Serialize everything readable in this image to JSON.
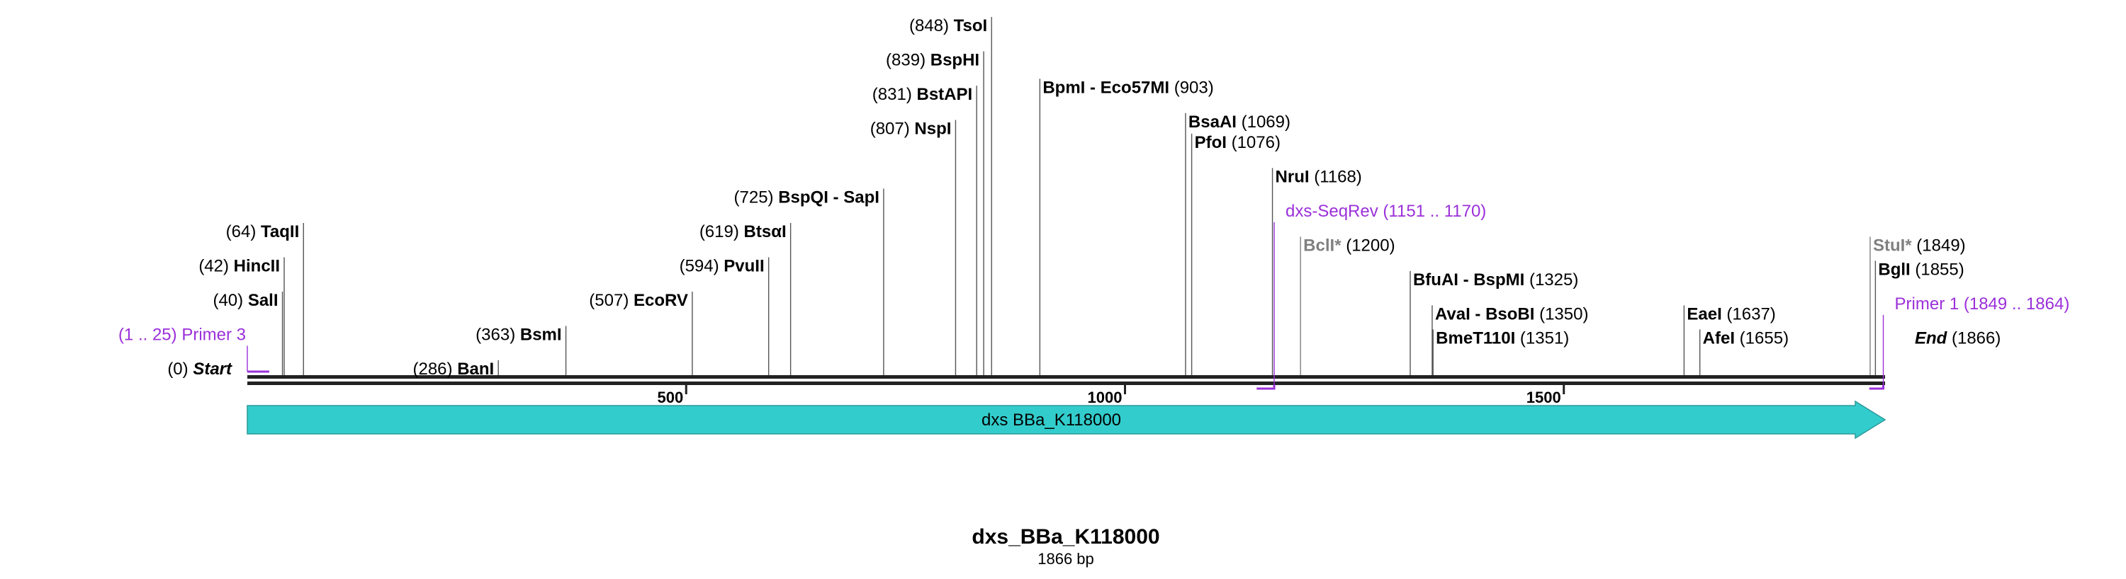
{
  "title": "dxs_BBa_K118000",
  "subtitle": "1866 bp",
  "sequence_length": 1866,
  "colors": {
    "backbone": "#222222",
    "feature_fill": "#33cccc",
    "feature_stroke": "#2a9a9a",
    "primer": "#9b30d9",
    "dim_site": "#808080",
    "line": "#555555"
  },
  "axis_ticks": [
    {
      "value": 500,
      "label": "500"
    },
    {
      "value": 1000,
      "label": "1000"
    },
    {
      "value": 1500,
      "label": "1500"
    }
  ],
  "feature": {
    "name": "dxs BBa_K118000",
    "start": 1,
    "end": 1866,
    "direction": "forward"
  },
  "sites": [
    {
      "name": "Start",
      "pos": 0,
      "pos_label": "(0)",
      "side": "left",
      "kind": "terminus",
      "tier": 0
    },
    {
      "name": "SalI",
      "pos": 40,
      "pos_label": "(40)",
      "side": "left",
      "kind": "enzyme",
      "tier": 2
    },
    {
      "name": "HincII",
      "pos": 42,
      "pos_label": "(42)",
      "side": "left",
      "kind": "enzyme",
      "tier": 3
    },
    {
      "name": "TaqII",
      "pos": 64,
      "pos_label": "(64)",
      "side": "left",
      "kind": "enzyme",
      "tier": 4
    },
    {
      "name": "BanI",
      "pos": 286,
      "pos_label": "(286)",
      "side": "left",
      "kind": "enzyme",
      "tier": 0
    },
    {
      "name": "BsmI",
      "pos": 363,
      "pos_label": "(363)",
      "side": "left",
      "kind": "enzyme",
      "tier": 1
    },
    {
      "name": "EcoRV",
      "pos": 507,
      "pos_label": "(507)",
      "side": "left",
      "kind": "enzyme",
      "tier": 2
    },
    {
      "name": "PvuII",
      "pos": 594,
      "pos_label": "(594)",
      "side": "left",
      "kind": "enzyme",
      "tier": 3
    },
    {
      "name": "BtsαI",
      "pos": 619,
      "pos_label": "(619)",
      "side": "left",
      "kind": "enzyme",
      "tier": 4
    },
    {
      "name": "BspQI - SapI",
      "pos": 725,
      "pos_label": "(725)",
      "side": "left",
      "kind": "enzyme",
      "tier": 5
    },
    {
      "name": "NspI",
      "pos": 807,
      "pos_label": "(807)",
      "side": "left",
      "kind": "enzyme",
      "tier": 7
    },
    {
      "name": "BstAPI",
      "pos": 831,
      "pos_label": "(831)",
      "side": "left",
      "kind": "enzyme",
      "tier": 8
    },
    {
      "name": "BspHI",
      "pos": 839,
      "pos_label": "(839)",
      "side": "left",
      "kind": "enzyme",
      "tier": 9
    },
    {
      "name": "TsoI",
      "pos": 848,
      "pos_label": "(848)",
      "side": "left",
      "kind": "enzyme",
      "tier": 10
    },
    {
      "name": "BpmI - Eco57MI",
      "pos": 903,
      "pos_label": "(903)",
      "side": "right",
      "kind": "enzyme",
      "tier": 8.2
    },
    {
      "name": "BsaAI",
      "pos": 1069,
      "pos_label": "(1069)",
      "side": "right",
      "kind": "enzyme",
      "tier": 7.2
    },
    {
      "name": "PfoI",
      "pos": 1076,
      "pos_label": "(1076)",
      "side": "right",
      "kind": "enzyme",
      "tier": 6.6
    },
    {
      "name": "NruI",
      "pos": 1168,
      "pos_label": "(1168)",
      "side": "right",
      "kind": "enzyme",
      "tier": 5.6
    },
    {
      "name": "BclI*",
      "pos": 1200,
      "pos_label": "(1200)",
      "side": "right",
      "kind": "dim",
      "tier": 3.6
    },
    {
      "name": "BfuAI - BspMI",
      "pos": 1325,
      "pos_label": "(1325)",
      "side": "right",
      "kind": "enzyme",
      "tier": 2.6
    },
    {
      "name": "AvaI - BsoBI",
      "pos": 1350,
      "pos_label": "(1350)",
      "side": "right",
      "kind": "enzyme",
      "tier": 1.6
    },
    {
      "name": "BmeT110I",
      "pos": 1351,
      "pos_label": "(1351)",
      "side": "right",
      "kind": "enzyme",
      "tier": 0.9
    },
    {
      "name": "EaeI",
      "pos": 1637,
      "pos_label": "(1637)",
      "side": "right",
      "kind": "enzyme",
      "tier": 1.6
    },
    {
      "name": "AfeI",
      "pos": 1655,
      "pos_label": "(1655)",
      "side": "right",
      "kind": "enzyme",
      "tier": 0.9
    },
    {
      "name": "StuI*",
      "pos": 1849,
      "pos_label": "(1849)",
      "side": "right",
      "kind": "dim",
      "tier": 3.6
    },
    {
      "name": "BglI",
      "pos": 1855,
      "pos_label": "(1855)",
      "side": "right",
      "kind": "enzyme",
      "tier": 2.9
    },
    {
      "name": "End",
      "pos": 1866,
      "pos_label": "(1866)",
      "side": "right",
      "kind": "terminus",
      "tier": 0.9
    }
  ],
  "primers": [
    {
      "name": "Primer 3",
      "range_label": "(1 .. 25)",
      "start": 1,
      "end": 25,
      "strand": "top",
      "side": "left",
      "tier": 1
    },
    {
      "name": "dxs-SeqRev",
      "range_label": "(1151 .. 1170)",
      "start": 1151,
      "end": 1170,
      "strand": "bottom",
      "side": "right",
      "tier": 4.6
    },
    {
      "name": "Primer 1",
      "range_label": "(1849 .. 1864)",
      "start": 1849,
      "end": 1864,
      "strand": "bottom",
      "side": "right",
      "tier": 1.9
    }
  ]
}
